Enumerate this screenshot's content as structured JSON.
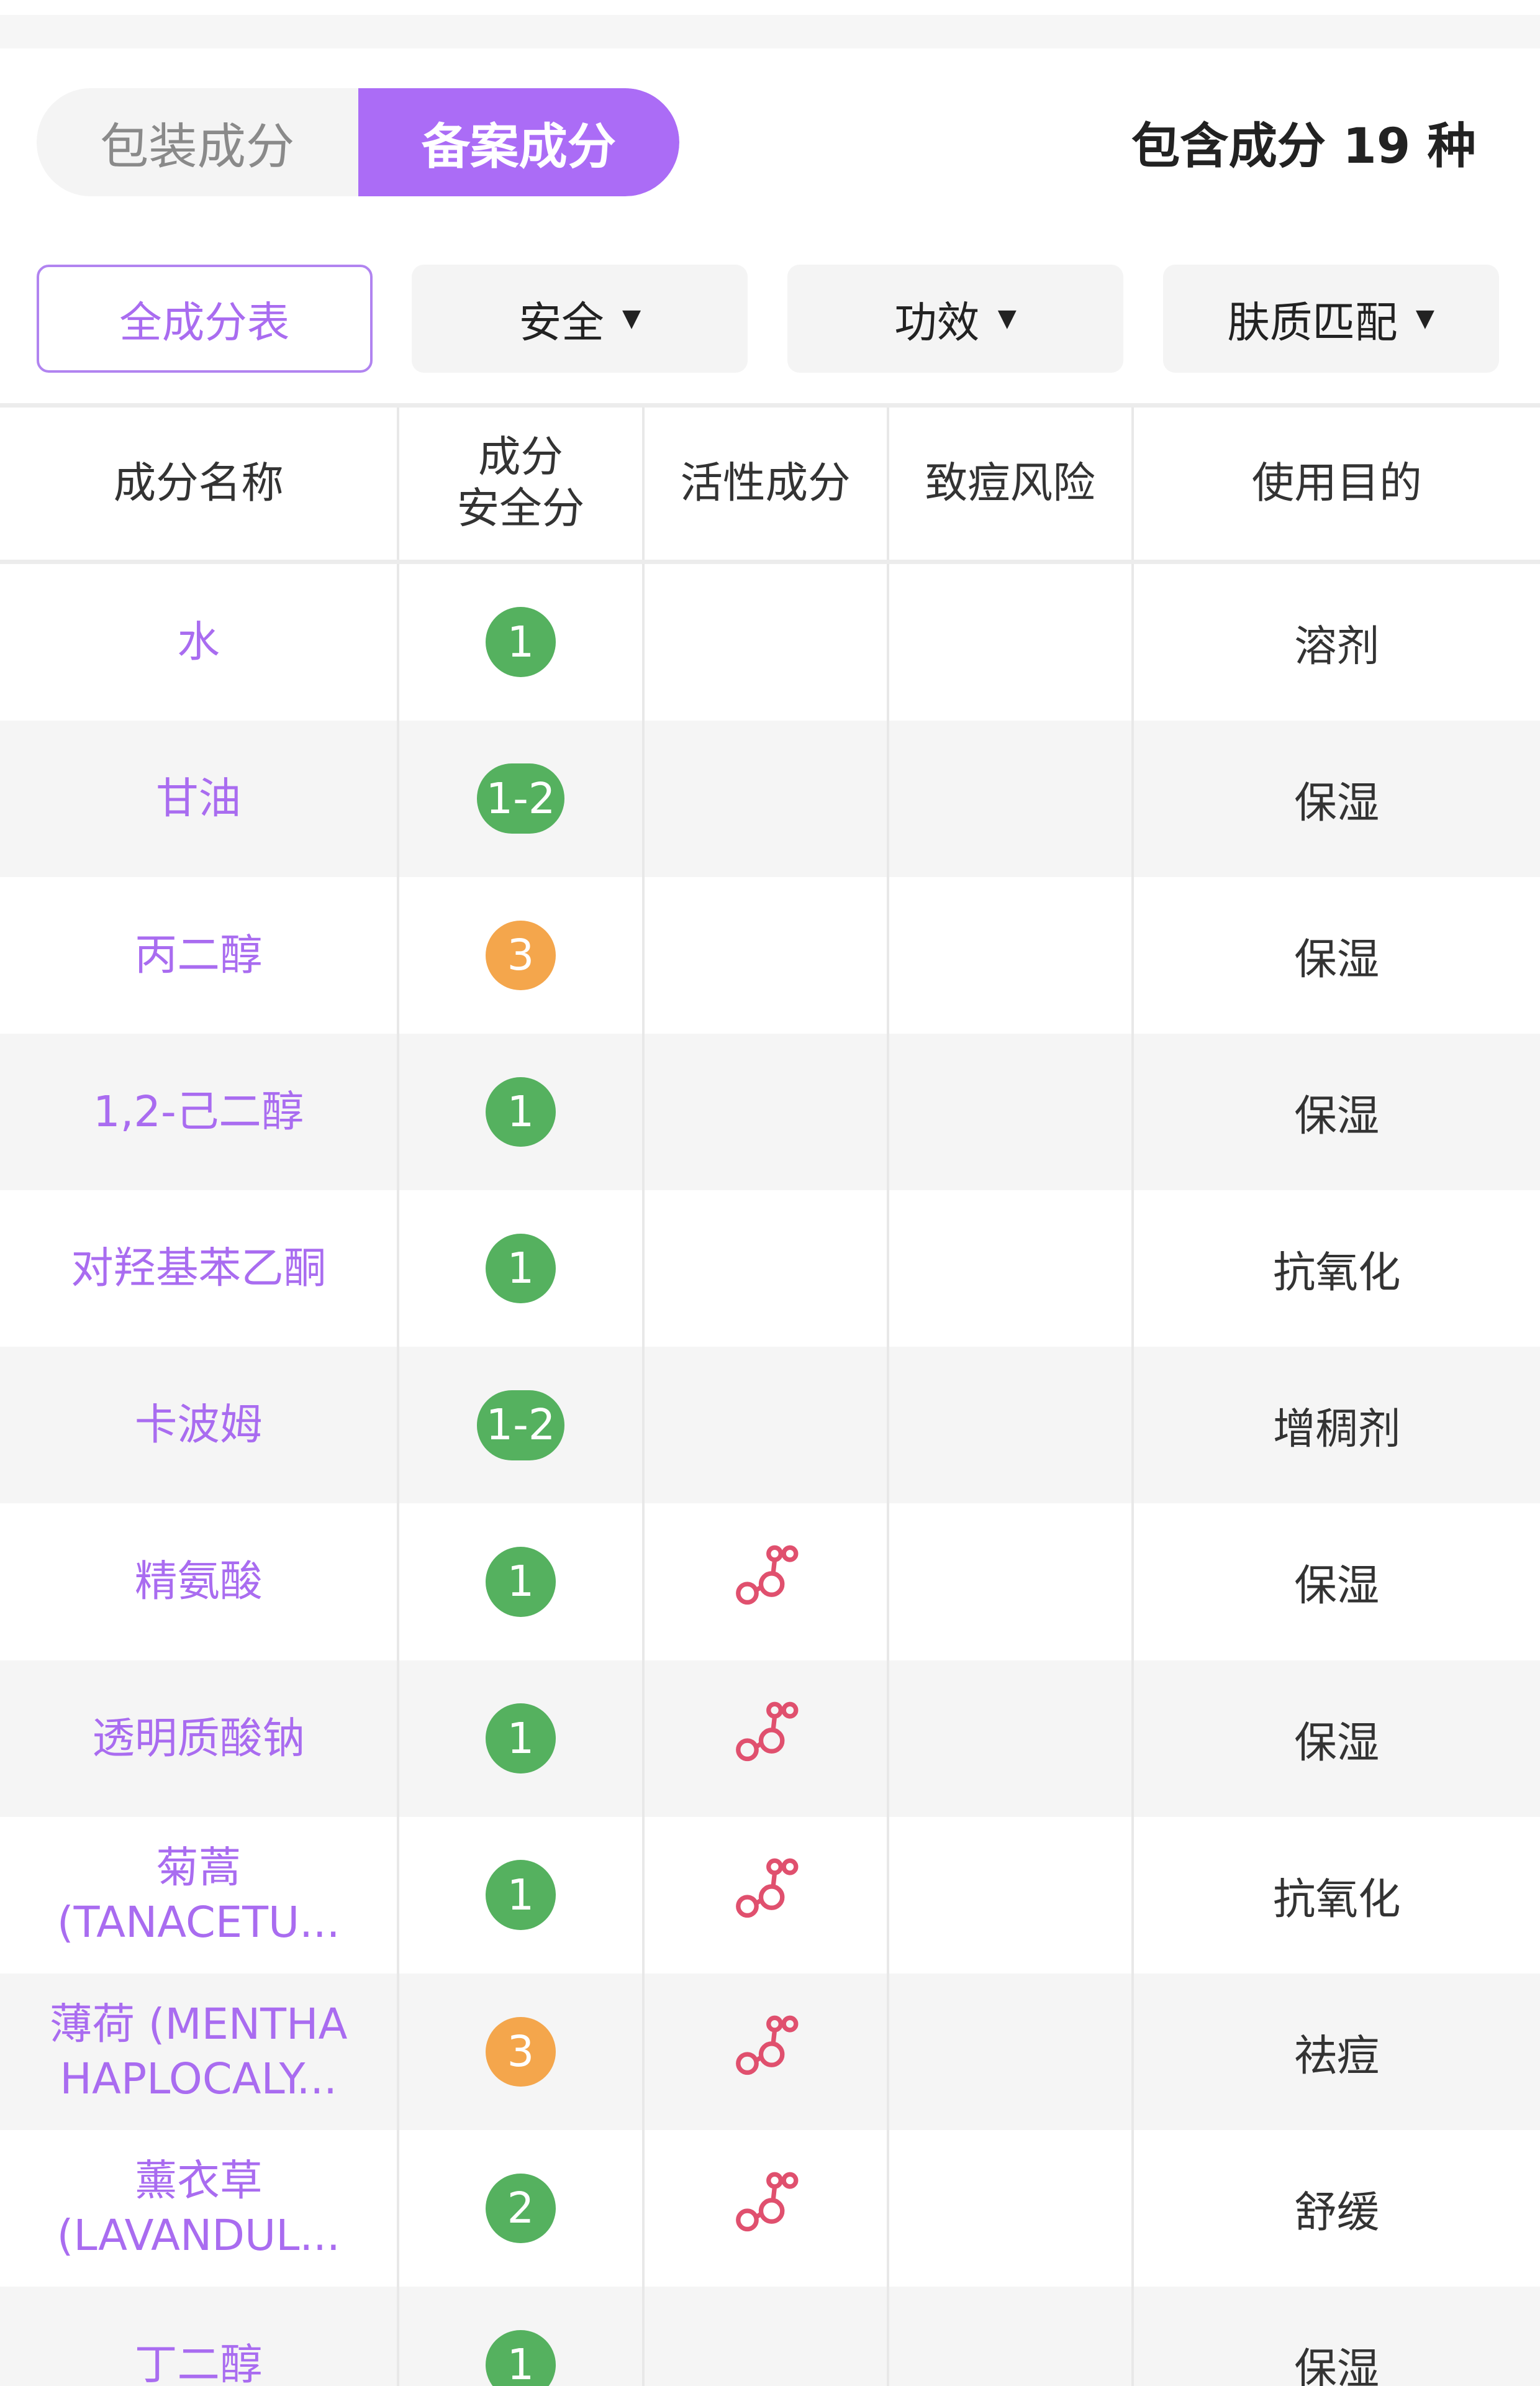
{
  "tabs": [
    {
      "label": "包装成分",
      "active": false
    },
    {
      "label": "备案成分",
      "active": true
    }
  ],
  "count_text": "包含成分 19 种",
  "filters": [
    {
      "label": "全成分表",
      "active": true,
      "dropdown": false
    },
    {
      "label": "安全",
      "dropdown": true
    },
    {
      "label": "功效",
      "dropdown": true
    },
    {
      "label": "肤质匹配",
      "dropdown": true
    }
  ],
  "caret": "▼",
  "columns": [
    "成分名称",
    "成分\n安全分",
    "活性成分",
    "致痘风险",
    "使用目的"
  ],
  "colors": {
    "accent": "#ab6cf6",
    "score_green": "#55b15f",
    "score_orange": "#f4a64c",
    "active_icon": "#e0506e"
  },
  "rows": [
    {
      "name": "水",
      "score": "1",
      "level": "green",
      "active": false,
      "acne": "",
      "purpose": "溶剂"
    },
    {
      "name": "甘油",
      "score": "1-2",
      "level": "green",
      "active": false,
      "acne": "",
      "purpose": "保湿"
    },
    {
      "name": "丙二醇",
      "score": "3",
      "level": "orange",
      "active": false,
      "acne": "",
      "purpose": "保湿"
    },
    {
      "name": "1,2-己二醇",
      "score": "1",
      "level": "green",
      "active": false,
      "acne": "",
      "purpose": "保湿"
    },
    {
      "name": "对羟基苯乙酮",
      "score": "1",
      "level": "green",
      "active": false,
      "acne": "",
      "purpose": "抗氧化"
    },
    {
      "name": "卡波姆",
      "score": "1-2",
      "level": "green",
      "active": false,
      "acne": "",
      "purpose": "增稠剂"
    },
    {
      "name": "精氨酸",
      "score": "1",
      "level": "green",
      "active": true,
      "acne": "",
      "purpose": "保湿"
    },
    {
      "name": "透明质酸钠",
      "score": "1",
      "level": "green",
      "active": true,
      "acne": "",
      "purpose": "保湿"
    },
    {
      "name": "菊蒿 (TANACETU...",
      "score": "1",
      "level": "green",
      "active": true,
      "acne": "",
      "purpose": "抗氧化"
    },
    {
      "name": "薄荷 (MENTHA HAPLOCALY...",
      "score": "3",
      "level": "orange",
      "active": true,
      "acne": "",
      "purpose": "祛痘"
    },
    {
      "name": "薰衣草 (LAVANDUL...",
      "score": "2",
      "level": "green",
      "active": true,
      "acne": "",
      "purpose": "舒缓"
    },
    {
      "name": "丁二醇",
      "score": "1",
      "level": "green",
      "active": false,
      "acne": "",
      "purpose": "保湿"
    }
  ]
}
